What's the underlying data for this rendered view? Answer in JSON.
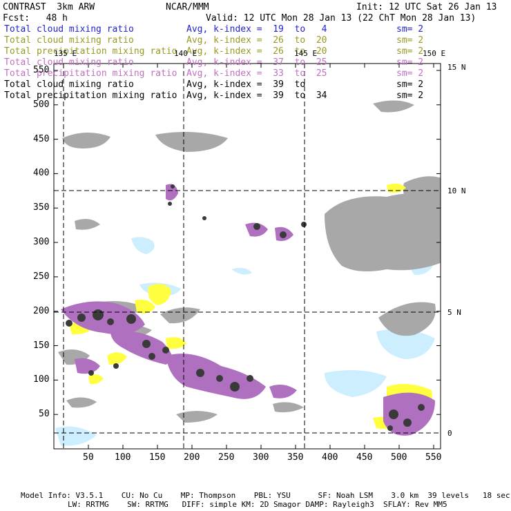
{
  "header": {
    "model": "CONTRAST  3km ARW",
    "center": "NCAR/MMM",
    "init": "Init: 12 UTC Sat 26 Jan 13",
    "fcst": "Fcst:   48 h",
    "valid": "Valid: 12 UTC Mon 28 Jan 13 (22 ChT Mon 28 Jan 13)"
  },
  "legend": [
    {
      "label": "Total cloud mixing ratio",
      "avg": "Avg, k-index =  19  to   4",
      "sm": "sm= 2",
      "color": "#2222cc"
    },
    {
      "label": "Total cloud mixing ratio",
      "avg": "Avg, k-index =  26  to  20",
      "sm": "sm= 2",
      "color": "#999922"
    },
    {
      "label": "Total precipitation mixing ratio",
      "avg": "Avg, k-index =  26  to  20",
      "sm": "sm= 2",
      "color": "#999922"
    },
    {
      "label": "Total cloud mixing ratio",
      "avg": "Avg, k-index =  37  to  25",
      "sm": "sm= 2",
      "color": "#c070c0"
    },
    {
      "label": "Total precipitation mixing ratio",
      "avg": "Avg, k-index =  33  to  25",
      "sm": "sm= 2",
      "color": "#c070c0"
    },
    {
      "label": "Total cloud mixing ratio",
      "avg": "Avg, k-index =  39  to",
      "sm": "sm= 2",
      "color": "#000000"
    },
    {
      "label": "Total precipitation mixing ratio",
      "avg": "Avg, k-index =  39  to  34",
      "sm": "sm= 2",
      "color": "#000000"
    }
  ],
  "grid": {
    "lon_labels": [
      "135 E",
      "140 E",
      "145 E",
      "150 E"
    ],
    "lat_labels": [
      "15 N",
      "10 N",
      "5 N",
      "0"
    ],
    "x_ticks": [
      "50",
      "100",
      "150",
      "200",
      "250",
      "300",
      "350",
      "400",
      "450",
      "500",
      "550"
    ],
    "y_ticks": [
      "50",
      "100",
      "150",
      "200",
      "250",
      "300",
      "350",
      "400",
      "450",
      "500",
      "550"
    ],
    "x_range": [
      0,
      560
    ],
    "y_range": [
      0,
      560
    ]
  },
  "footer": {
    "line1": "Model Info: V3.5.1    CU: No Cu    MP: Thompson    PBL: YSU      SF: Noah LSM    3.0 km  39 levels   18 sec",
    "line2": "LW: RRTMG    SW: RRTMG   DIFF: simple KM: 2D Smagor DAMP: Rayleigh3  SFLAY: Rev MM5"
  },
  "colors": {
    "light_gray": "#a8a8a8",
    "dark_gray": "#3a3a3a",
    "purple": "#b070c0",
    "yellow": "#ffff40",
    "light_blue": "#cceeff"
  }
}
